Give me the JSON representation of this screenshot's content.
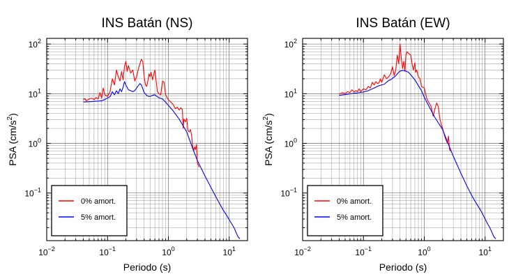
{
  "figure": {
    "colors": {
      "series_0": "#ff0000",
      "series_1": "#0000ff",
      "grid": "#555555",
      "frame": "#000000"
    }
  },
  "chart_data": [
    {
      "type": "line",
      "title": "INS Batán (NS)",
      "xlabel": "Periodo (s)",
      "ylabel_main": "PSA (cm/s",
      "ylabel_sup": "2",
      "ylabel_end": ")",
      "x_scale": "log",
      "y_scale": "log",
      "xlim": [
        0.01,
        20
      ],
      "ylim": [
        0.011,
        130
      ],
      "grid": true,
      "legend_position": "bottom-left",
      "x_ticks": [
        {
          "value": 0.01,
          "base": "10",
          "exp": "−2"
        },
        {
          "value": 0.1,
          "base": "10",
          "exp": "−1"
        },
        {
          "value": 1,
          "base": "10",
          "exp": "0"
        },
        {
          "value": 10,
          "base": "10",
          "exp": "1"
        }
      ],
      "y_ticks": [
        {
          "value": 0.1,
          "base": "10",
          "exp": "−1"
        },
        {
          "value": 1,
          "base": "10",
          "exp": "0"
        },
        {
          "value": 10,
          "base": "10",
          "exp": "1"
        },
        {
          "value": 100,
          "base": "10",
          "exp": "2"
        }
      ],
      "series": [
        {
          "name": "0% amort.",
          "color": "#ff0000",
          "points": [
            [
              0.04,
              7.5
            ],
            [
              0.042,
              8.0
            ],
            [
              0.045,
              7.2
            ],
            [
              0.048,
              7.6
            ],
            [
              0.05,
              7.8
            ],
            [
              0.055,
              8.1
            ],
            [
              0.06,
              7.6
            ],
            [
              0.065,
              8.4
            ],
            [
              0.07,
              7.8
            ],
            [
              0.075,
              10.5
            ],
            [
              0.08,
              8.2
            ],
            [
              0.085,
              13.0
            ],
            [
              0.09,
              9.5
            ],
            [
              0.1,
              8.8
            ],
            [
              0.11,
              11.0
            ],
            [
              0.12,
              20.0
            ],
            [
              0.13,
              15.0
            ],
            [
              0.14,
              30.0
            ],
            [
              0.15,
              22.0
            ],
            [
              0.16,
              18.0
            ],
            [
              0.17,
              28.0
            ],
            [
              0.18,
              19.0
            ],
            [
              0.19,
              35.0
            ],
            [
              0.2,
              45.0
            ],
            [
              0.21,
              28.0
            ],
            [
              0.22,
              37.0
            ],
            [
              0.24,
              26.0
            ],
            [
              0.26,
              30.0
            ],
            [
              0.28,
              18.0
            ],
            [
              0.3,
              22.0
            ],
            [
              0.32,
              31.0
            ],
            [
              0.34,
              40.0
            ],
            [
              0.36,
              49.0
            ],
            [
              0.38,
              44.0
            ],
            [
              0.4,
              22.0
            ],
            [
              0.42,
              15.0
            ],
            [
              0.44,
              14.0
            ],
            [
              0.46,
              18.0
            ],
            [
              0.48,
              25.0
            ],
            [
              0.5,
              22.0
            ],
            [
              0.52,
              27.0
            ],
            [
              0.55,
              19.0
            ],
            [
              0.58,
              26.0
            ],
            [
              0.6,
              30.0
            ],
            [
              0.63,
              18.0
            ],
            [
              0.66,
              11.0
            ],
            [
              0.7,
              10.0
            ],
            [
              0.75,
              9.5
            ],
            [
              0.8,
              18.0
            ],
            [
              0.85,
              17.0
            ],
            [
              0.9,
              9.5
            ],
            [
              1.0,
              7.5
            ],
            [
              1.1,
              6.8
            ],
            [
              1.2,
              6.0
            ],
            [
              1.3,
              5.0
            ],
            [
              1.4,
              5.3
            ],
            [
              1.5,
              4.7
            ],
            [
              1.6,
              5.2
            ],
            [
              1.7,
              4.8
            ],
            [
              1.75,
              2.0
            ],
            [
              1.8,
              3.1
            ],
            [
              1.9,
              2.7
            ],
            [
              2.0,
              3.2
            ],
            [
              2.1,
              1.8
            ],
            [
              2.2,
              1.7
            ],
            [
              2.3,
              1.9
            ],
            [
              2.4,
              1.5
            ],
            [
              2.5,
              0.9
            ],
            [
              2.6,
              0.7
            ],
            [
              2.7,
              0.85
            ],
            [
              2.8,
              0.75
            ],
            [
              2.9,
              0.95
            ],
            [
              3.0,
              0.4
            ],
            [
              3.2,
              0.33
            ]
          ]
        },
        {
          "name": "5% amort.",
          "color": "#0000ff",
          "points": [
            [
              0.04,
              6.8
            ],
            [
              0.05,
              6.9
            ],
            [
              0.06,
              7.0
            ],
            [
              0.07,
              7.1
            ],
            [
              0.08,
              7.2
            ],
            [
              0.09,
              7.6
            ],
            [
              0.1,
              8.2
            ],
            [
              0.11,
              8.7
            ],
            [
              0.12,
              11.0
            ],
            [
              0.13,
              9.5
            ],
            [
              0.14,
              11.5
            ],
            [
              0.15,
              10.0
            ],
            [
              0.16,
              12.5
            ],
            [
              0.17,
              11.0
            ],
            [
              0.18,
              13.5
            ],
            [
              0.19,
              17.5
            ],
            [
              0.2,
              15.0
            ],
            [
              0.22,
              12.0
            ],
            [
              0.24,
              11.5
            ],
            [
              0.26,
              11.0
            ],
            [
              0.28,
              11.5
            ],
            [
              0.3,
              13.0
            ],
            [
              0.32,
              14.5
            ],
            [
              0.34,
              16.0
            ],
            [
              0.36,
              15.0
            ],
            [
              0.38,
              12.5
            ],
            [
              0.4,
              10.5
            ],
            [
              0.45,
              9.0
            ],
            [
              0.5,
              8.8
            ],
            [
              0.55,
              9.3
            ],
            [
              0.6,
              9.5
            ],
            [
              0.65,
              8.8
            ],
            [
              0.7,
              8.3
            ],
            [
              0.8,
              7.8
            ],
            [
              0.9,
              6.8
            ],
            [
              1.0,
              5.8
            ],
            [
              1.2,
              4.5
            ],
            [
              1.5,
              3.1
            ],
            [
              2.0,
              1.7
            ],
            [
              2.5,
              0.8
            ],
            [
              3.0,
              0.45
            ],
            [
              4.0,
              0.22
            ],
            [
              5.0,
              0.13
            ],
            [
              6.0,
              0.085
            ],
            [
              7.0,
              0.06
            ],
            [
              8.0,
              0.045
            ],
            [
              9.0,
              0.036
            ],
            [
              10.0,
              0.029
            ],
            [
              11.0,
              0.024
            ],
            [
              12.0,
              0.02
            ],
            [
              13.0,
              0.016
            ],
            [
              14.0,
              0.013
            ],
            [
              15.0,
              0.012
            ]
          ]
        }
      ]
    },
    {
      "type": "line",
      "title": "INS Batán (EW)",
      "xlabel": "Periodo (s)",
      "ylabel_main": "PSA (cm/s",
      "ylabel_sup": "2",
      "ylabel_end": ")",
      "x_scale": "log",
      "y_scale": "log",
      "xlim": [
        0.01,
        20
      ],
      "ylim": [
        0.011,
        130
      ],
      "grid": true,
      "legend_position": "bottom-left",
      "x_ticks": [
        {
          "value": 0.01,
          "base": "10",
          "exp": "−2"
        },
        {
          "value": 0.1,
          "base": "10",
          "exp": "−1"
        },
        {
          "value": 1,
          "base": "10",
          "exp": "0"
        },
        {
          "value": 10,
          "base": "10",
          "exp": "1"
        }
      ],
      "y_ticks": [
        {
          "value": 0.1,
          "base": "10",
          "exp": "−1"
        },
        {
          "value": 1,
          "base": "10",
          "exp": "0"
        },
        {
          "value": 10,
          "base": "10",
          "exp": "1"
        },
        {
          "value": 100,
          "base": "10",
          "exp": "2"
        }
      ],
      "series": [
        {
          "name": "0% amort.",
          "color": "#ff0000",
          "points": [
            [
              0.04,
              9.8
            ],
            [
              0.045,
              10.5
            ],
            [
              0.05,
              10.0
            ],
            [
              0.055,
              11.0
            ],
            [
              0.06,
              10.5
            ],
            [
              0.065,
              12.0
            ],
            [
              0.07,
              10.8
            ],
            [
              0.075,
              11.5
            ],
            [
              0.08,
              11.0
            ],
            [
              0.085,
              12.5
            ],
            [
              0.09,
              11.0
            ],
            [
              0.1,
              12.5
            ],
            [
              0.11,
              12.0
            ],
            [
              0.12,
              14.0
            ],
            [
              0.13,
              13.0
            ],
            [
              0.14,
              17.0
            ],
            [
              0.15,
              15.0
            ],
            [
              0.16,
              17.5
            ],
            [
              0.17,
              16.0
            ],
            [
              0.18,
              16.5
            ],
            [
              0.19,
              20.0
            ],
            [
              0.2,
              17.0
            ],
            [
              0.22,
              24.0
            ],
            [
              0.24,
              20.0
            ],
            [
              0.26,
              22.0
            ],
            [
              0.28,
              25.0
            ],
            [
              0.3,
              35.0
            ],
            [
              0.32,
              23.0
            ],
            [
              0.34,
              30.0
            ],
            [
              0.36,
              60.0
            ],
            [
              0.38,
              40.0
            ],
            [
              0.4,
              100.0
            ],
            [
              0.42,
              50.0
            ],
            [
              0.44,
              32.0
            ],
            [
              0.46,
              45.0
            ],
            [
              0.48,
              28.0
            ],
            [
              0.5,
              60.0
            ],
            [
              0.52,
              70.0
            ],
            [
              0.55,
              65.0
            ],
            [
              0.6,
              60.0
            ],
            [
              0.63,
              40.0
            ],
            [
              0.66,
              30.0
            ],
            [
              0.7,
              42.0
            ],
            [
              0.72,
              27.0
            ],
            [
              0.75,
              30.0
            ],
            [
              0.8,
              22.0
            ],
            [
              0.85,
              20.0
            ],
            [
              0.9,
              14.0
            ],
            [
              1.0,
              13.0
            ],
            [
              1.1,
              8.0
            ],
            [
              1.2,
              6.5
            ],
            [
              1.3,
              5.5
            ],
            [
              1.4,
              3.5
            ],
            [
              1.5,
              5.0
            ],
            [
              1.6,
              6.5
            ],
            [
              1.7,
              5.5
            ],
            [
              1.8,
              3.2
            ],
            [
              1.9,
              2.4
            ],
            [
              2.0,
              2.0
            ],
            [
              2.2,
              1.3
            ],
            [
              2.4,
              1.0
            ],
            [
              2.5,
              1.4
            ],
            [
              2.6,
              0.75
            ],
            [
              2.7,
              0.7
            ]
          ]
        },
        {
          "name": "5% amort.",
          "color": "#0000ff",
          "points": [
            [
              0.04,
              9.3
            ],
            [
              0.05,
              9.6
            ],
            [
              0.06,
              9.9
            ],
            [
              0.07,
              10.2
            ],
            [
              0.08,
              10.4
            ],
            [
              0.1,
              10.8
            ],
            [
              0.12,
              11.5
            ],
            [
              0.14,
              12.5
            ],
            [
              0.16,
              13.5
            ],
            [
              0.18,
              14.5
            ],
            [
              0.2,
              15.0
            ],
            [
              0.22,
              15.5
            ],
            [
              0.24,
              17.0
            ],
            [
              0.26,
              18.5
            ],
            [
              0.28,
              19.0
            ],
            [
              0.3,
              20.5
            ],
            [
              0.32,
              21.5
            ],
            [
              0.34,
              23.0
            ],
            [
              0.36,
              25.0
            ],
            [
              0.38,
              27.0
            ],
            [
              0.4,
              28.5
            ],
            [
              0.45,
              29.5
            ],
            [
              0.5,
              28.5
            ],
            [
              0.55,
              27.0
            ],
            [
              0.6,
              24.0
            ],
            [
              0.7,
              19.0
            ],
            [
              0.8,
              14.5
            ],
            [
              0.9,
              11.5
            ],
            [
              1.0,
              8.5
            ],
            [
              1.2,
              5.5
            ],
            [
              1.5,
              3.3
            ],
            [
              2.0,
              1.9
            ],
            [
              2.5,
              0.95
            ],
            [
              3.0,
              0.55
            ],
            [
              4.0,
              0.25
            ],
            [
              5.0,
              0.14
            ],
            [
              6.0,
              0.09
            ],
            [
              7.0,
              0.065
            ],
            [
              8.0,
              0.05
            ],
            [
              9.0,
              0.039
            ],
            [
              10.0,
              0.03
            ],
            [
              11.0,
              0.024
            ],
            [
              12.0,
              0.02
            ],
            [
              13.0,
              0.016
            ],
            [
              14.0,
              0.013
            ],
            [
              15.0,
              0.012
            ]
          ]
        }
      ]
    }
  ]
}
